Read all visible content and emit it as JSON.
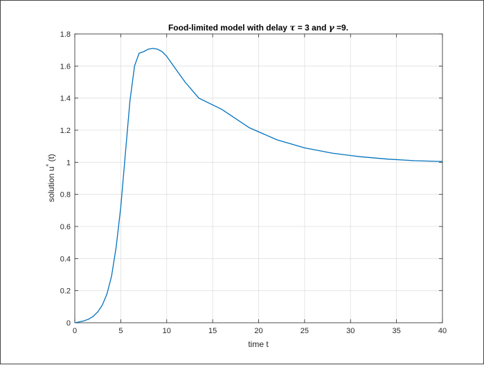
{
  "chart_data": {
    "type": "line",
    "title_pre": "Food-limited model with delay ",
    "title_tau": "τ",
    "title_mid": " = 3 and ",
    "title_gamma": "γ",
    "title_post": " =9.",
    "xlabel": "time t",
    "ylabel_pre": "solution u",
    "ylabel_sup": "*",
    "ylabel_post": " (t)",
    "xlim": [
      0,
      40
    ],
    "ylim": [
      0,
      1.8
    ],
    "xticks": [
      "0",
      "5",
      "10",
      "15",
      "20",
      "25",
      "30",
      "35",
      "40"
    ],
    "yticks": [
      "0",
      "0.2",
      "0.4",
      "0.6",
      "0.8",
      "1",
      "1.2",
      "1.4",
      "1.6",
      "1.8"
    ],
    "grid": true,
    "line_color": "#0072BD",
    "series": [
      {
        "x": [
          0,
          0.5,
          1,
          1.5,
          2,
          2.5,
          3,
          3.5,
          4,
          4.5,
          5,
          5.5,
          6,
          6.5,
          7,
          7.5,
          8,
          8.5,
          9,
          9.5,
          10,
          11,
          12,
          13.5,
          16,
          19,
          22,
          25,
          28,
          31,
          34,
          37,
          40
        ],
        "y": [
          0.0,
          0.005,
          0.012,
          0.022,
          0.04,
          0.068,
          0.11,
          0.18,
          0.29,
          0.47,
          0.72,
          1.05,
          1.38,
          1.6,
          1.68,
          1.69,
          1.705,
          1.71,
          1.705,
          1.69,
          1.66,
          1.58,
          1.5,
          1.4,
          1.33,
          1.215,
          1.14,
          1.09,
          1.057,
          1.035,
          1.02,
          1.01,
          1.005
        ]
      }
    ]
  }
}
